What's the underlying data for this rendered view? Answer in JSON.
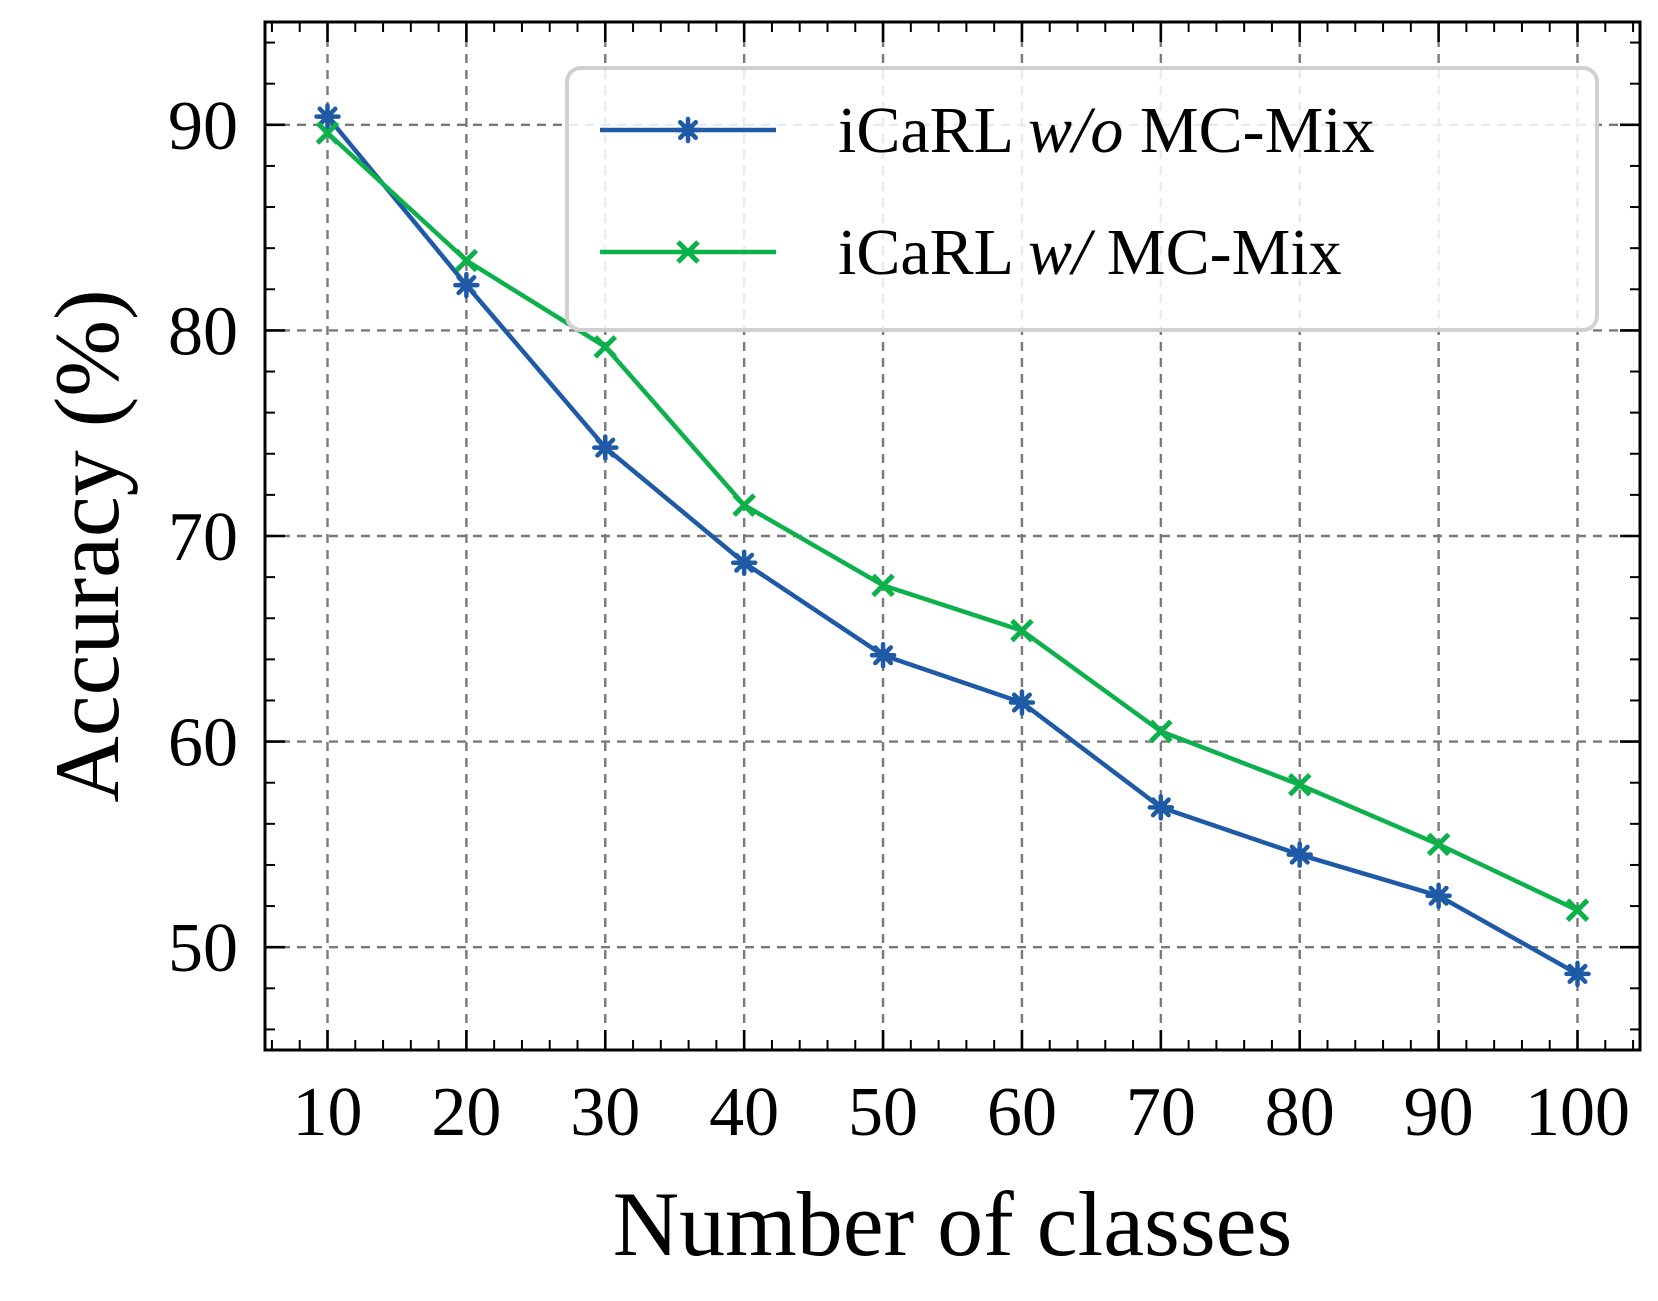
{
  "chart_data": {
    "type": "line",
    "title": "",
    "xlabel": "Number of classes",
    "ylabel": "Accuracy (%)",
    "x": [
      10,
      20,
      30,
      40,
      50,
      60,
      70,
      80,
      90,
      100
    ],
    "xlim": [
      5.5,
      104.5
    ],
    "ylim": [
      45,
      95
    ],
    "xticks": [
      10,
      20,
      30,
      40,
      50,
      60,
      70,
      80,
      90,
      100
    ],
    "yticks": [
      50,
      60,
      70,
      80,
      90
    ],
    "grid": true,
    "legend_position": "top-right",
    "series": [
      {
        "name_prefix": "iCaRL ",
        "name_italic": "w/o",
        "name_suffix": " MC-Mix",
        "color": "#1f5aa6",
        "marker": "star",
        "values": [
          90.4,
          82.2,
          74.3,
          68.7,
          64.2,
          61.9,
          56.8,
          54.5,
          52.5,
          48.7
        ]
      },
      {
        "name_prefix": "iCaRL ",
        "name_italic": "w/",
        "name_suffix": " MC-Mix",
        "color": "#0cb14b",
        "marker": "x",
        "values": [
          89.6,
          83.4,
          79.2,
          71.5,
          67.6,
          65.4,
          60.5,
          57.9,
          55.0,
          51.8
        ]
      }
    ]
  }
}
